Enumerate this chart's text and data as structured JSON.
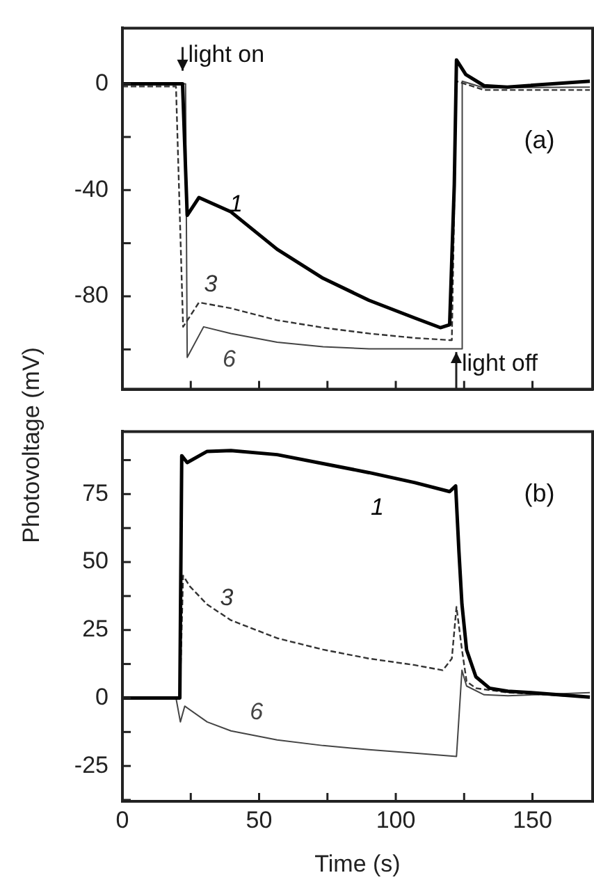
{
  "chart_data": [
    {
      "type": "line",
      "ylabel": "Photovoltage (mV)",
      "xlim": [
        0,
        172
      ],
      "ylim": [
        -115,
        21
      ],
      "xticks": [
        0,
        {
          "value": 25,
          "label": null
        },
        50,
        {
          "value": 75,
          "label": null
        },
        100,
        {
          "value": 125,
          "label": null
        },
        150
      ],
      "yticks": [
        {
          "value": -100,
          "label": null
        },
        -80,
        {
          "value": -60,
          "label": null
        },
        -40,
        {
          "value": -20,
          "label": null
        },
        0
      ],
      "tick_labels": "y",
      "grid": false,
      "legend": false,
      "marker": "none",
      "series": [
        {
          "name": "1",
          "color": "#000000",
          "line_style": "solid",
          "x": [
            0,
            22,
            23.7,
            28,
            39.7,
            56.6,
            73.4,
            90.2,
            107,
            116.3,
            119.7,
            121.4,
            122.2,
            125.6,
            132.3,
            140.8,
            171
          ],
          "values": [
            0,
            0,
            -49.5,
            -42.8,
            -48.2,
            -62.3,
            -73.2,
            -81.5,
            -88.2,
            -91.8,
            -90.7,
            -38,
            9,
            3.5,
            -0.7,
            -1.2,
            1
          ]
        },
        {
          "name": "3",
          "color": "#333333",
          "line_style": "dashed",
          "x": [
            0,
            19.6,
            22.2,
            28,
            39.7,
            56.6,
            73.4,
            90.2,
            107,
            119.7,
            120.5,
            122.2,
            132.3,
            171
          ],
          "values": [
            -1,
            -1,
            -91.5,
            -82.3,
            -84.5,
            -89,
            -91.8,
            -94,
            -95.7,
            -96.5,
            -96.5,
            1,
            -2.3,
            -2.3
          ]
        },
        {
          "name": "6",
          "color": "#444444",
          "line_style": "solid",
          "x": [
            0,
            23.1,
            23.7,
            29.7,
            39.7,
            56.6,
            73.4,
            90.2,
            124.2,
            124.3,
            132.3,
            171
          ],
          "values": [
            0,
            0,
            -103,
            -91.5,
            -94,
            -97.3,
            -99,
            -99.8,
            -99.8,
            1,
            -1.5,
            -1.2
          ]
        }
      ],
      "annotations": [
        "light on",
        "light off",
        "(a)"
      ]
    },
    {
      "type": "line",
      "xlabel": "Time (s)",
      "xlim": [
        0,
        172
      ],
      "ylim": [
        -38,
        98
      ],
      "xticks": [
        0,
        {
          "value": 25,
          "label": null
        },
        50,
        {
          "value": 75,
          "label": null
        },
        100,
        {
          "value": 125,
          "label": null
        },
        150
      ],
      "yticks": [
        {
          "value": -37.5,
          "label": null
        },
        -25,
        {
          "value": -12.5,
          "label": null
        },
        0,
        {
          "value": 12.5,
          "label": null
        },
        25,
        {
          "value": 37.5,
          "label": null
        },
        50,
        {
          "value": 62.5,
          "label": null
        },
        75,
        {
          "value": 87.5,
          "label": null
        }
      ],
      "grid": false,
      "legend": false,
      "marker": "none",
      "series": [
        {
          "name": "1",
          "color": "#000000",
          "line_style": "solid",
          "x": [
            0,
            21,
            21.7,
            23.7,
            31,
            39.7,
            56.6,
            73.4,
            90.2,
            107,
            119.7,
            121.9,
            123.1,
            124.2,
            125.9,
            129.3,
            134.3,
            141,
            149.5,
            171
          ],
          "values": [
            0,
            0,
            89.1,
            86.6,
            90.7,
            91,
            89.5,
            86.2,
            82.9,
            79.2,
            75.9,
            78,
            53.9,
            34.5,
            17.7,
            7.8,
            3.6,
            2.5,
            2,
            0.3
          ]
        },
        {
          "name": "3",
          "color": "#333333",
          "line_style": "dashed",
          "x": [
            0,
            21,
            22.2,
            24.7,
            31,
            39.7,
            56.6,
            73.4,
            90.2,
            107,
            117.2,
            120.5,
            122.2,
            124.2,
            125.9,
            129.3,
            141,
            171
          ],
          "values": [
            0,
            0,
            45,
            41,
            34.4,
            28.6,
            22,
            17.8,
            14.5,
            12.1,
            10.2,
            14.5,
            33.5,
            17.8,
            6.1,
            3.6,
            2,
            0.3
          ]
        },
        {
          "name": "6",
          "color": "#444444",
          "line_style": "solid",
          "x": [
            0,
            19.6,
            21.2,
            22.8,
            31,
            39.7,
            56.6,
            73.4,
            90.2,
            107,
            122.2,
            124.2,
            125.9,
            132.3,
            141,
            171
          ],
          "values": [
            0,
            0,
            -8.8,
            -3,
            -8.8,
            -12.1,
            -15.4,
            -17.5,
            -19,
            -20.3,
            -21.5,
            10.2,
            4.4,
            1.2,
            0.8,
            2
          ]
        }
      ],
      "annotations": [
        "(b)"
      ]
    }
  ]
}
